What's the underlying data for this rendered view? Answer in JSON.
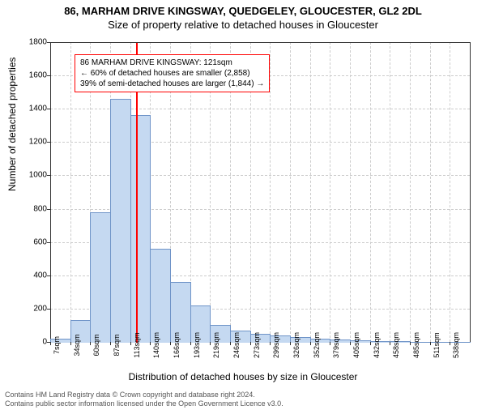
{
  "title": {
    "line1": "86, MARHAM DRIVE KINGSWAY, QUEDGELEY, GLOUCESTER, GL2 2DL",
    "line2": "Size of property relative to detached houses in Gloucester"
  },
  "ylabel": "Number of detached properties",
  "xlabel": "Distribution of detached houses by size in Gloucester",
  "chart": {
    "type": "histogram",
    "background_color": "#ffffff",
    "grid_color": "#cccccc",
    "axis_color": "#333333",
    "bar_fill": "#c5d9f1",
    "bar_stroke": "#6f94c8",
    "marker_color": "#ff0000",
    "annotation_border": "#ff0000",
    "ylim": [
      0,
      1800
    ],
    "ytick_step": 200,
    "x_start": 7,
    "x_step": 26.55,
    "x_bins": 21,
    "bar_values": [
      20,
      130,
      780,
      1460,
      1360,
      560,
      360,
      220,
      100,
      70,
      50,
      40,
      30,
      20,
      15,
      10,
      5,
      3,
      2,
      1,
      1
    ],
    "marker_x": 121
  },
  "annotation": {
    "line1": "86 MARHAM DRIVE KINGSWAY: 121sqm",
    "line2": "← 60% of detached houses are smaller (2,858)",
    "line3": "39% of semi-detached houses are larger (1,844) →"
  },
  "footer": {
    "line1": "Contains HM Land Registry data © Crown copyright and database right 2024.",
    "line2": "Contains public sector information licensed under the Open Government Licence v3.0."
  }
}
